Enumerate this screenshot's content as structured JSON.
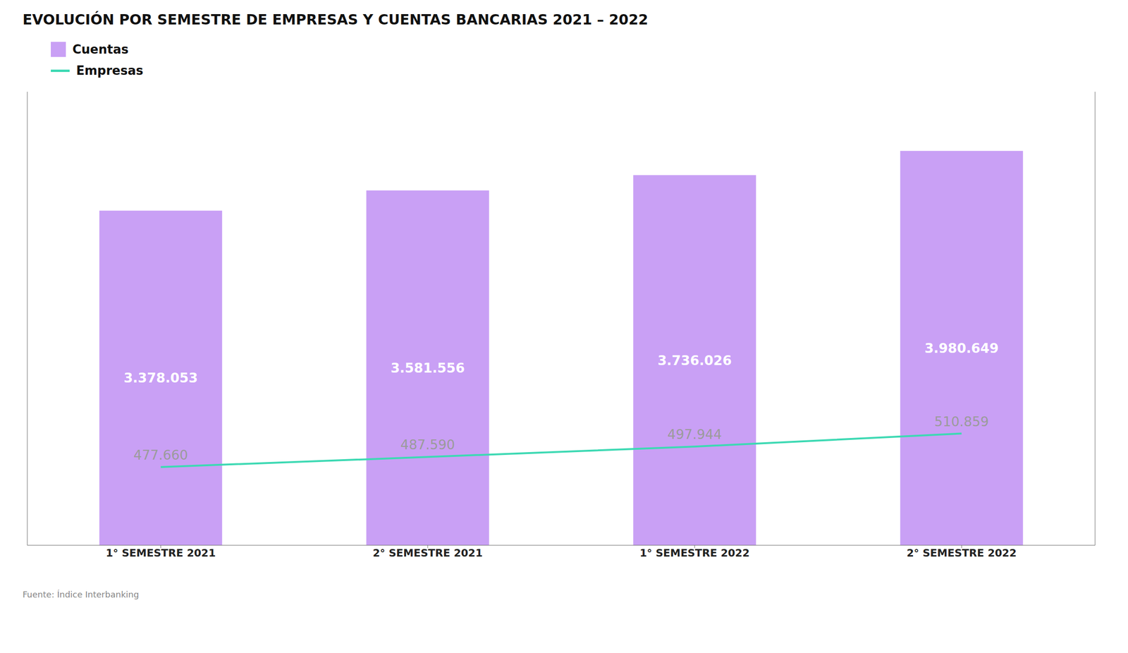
{
  "chart_data": {
    "type": "bar",
    "title": "EVOLUCIÓN POR SEMESTRE DE EMPRESAS Y CUENTAS BANCARIAS 2021 – 2022",
    "categories": [
      "1° SEMESTRE 2021",
      "2° SEMESTRE 2021",
      "1° SEMESTRE 2022",
      "2° SEMESTRE 2022"
    ],
    "series": [
      {
        "name": "Cuentas",
        "type": "bar",
        "color": "#c9a0f5",
        "values": [
          3378053,
          3581556,
          3736026,
          3980649
        ],
        "value_labels": [
          "3.378.053",
          "3.581.556",
          "3.736.026",
          "3.980.649"
        ]
      },
      {
        "name": "Empresas",
        "type": "line",
        "axis": "y2",
        "color": "#3dd9b3",
        "values": [
          477660,
          487590,
          497944,
          510859
        ],
        "value_labels": [
          "477.660",
          "487.590",
          "497.944",
          "510.859"
        ]
      }
    ],
    "ylim": [
      0,
      4577746.35
    ],
    "yticks": [],
    "y2lim": [
      400000,
      850000
    ],
    "y2ticks": [],
    "tick_labels": "x",
    "data_labels": true,
    "legend": "top-left",
    "grid": false,
    "annotations": [
      "Fuente: Índice Interbanking"
    ]
  }
}
